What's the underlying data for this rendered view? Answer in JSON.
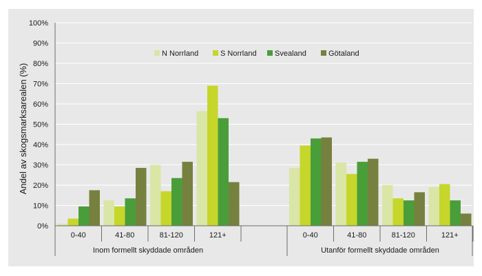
{
  "chart_data": {
    "type": "bar",
    "ylabel": "Andel av skogsmarksarealen (%)",
    "ylim": [
      0,
      100
    ],
    "yticks": [
      "0%",
      "10%",
      "20%",
      "30%",
      "40%",
      "50%",
      "60%",
      "70%",
      "80%",
      "90%",
      "100%"
    ],
    "grid": true,
    "legend_position": "top-center",
    "groups": [
      {
        "label": "Inom formellt skyddade områden",
        "categories": [
          "0-40",
          "41-80",
          "81-120",
          "121+"
        ]
      },
      {
        "label": "Utanför formellt skyddade områden",
        "categories": [
          "0-40",
          "41-80",
          "81-120",
          "121+"
        ]
      }
    ],
    "series": [
      {
        "name": "N Norrland",
        "color": "#d9e6a6",
        "values": [
          1,
          12.5,
          30,
          56.5,
          28.5,
          31,
          20,
          19
        ]
      },
      {
        "name": "S Norrland",
        "color": "#c6d62a",
        "values": [
          3.5,
          9.5,
          17,
          69,
          39.5,
          25.5,
          13.5,
          20.5
        ]
      },
      {
        "name": "Svealand",
        "color": "#4a9e3a",
        "values": [
          9.5,
          13.5,
          23.5,
          53,
          43,
          31.5,
          12.5,
          12.5
        ]
      },
      {
        "name": "Götaland",
        "color": "#76813f",
        "values": [
          17.5,
          28.5,
          31.5,
          21.5,
          43.5,
          33,
          16.5,
          6
        ]
      }
    ]
  }
}
